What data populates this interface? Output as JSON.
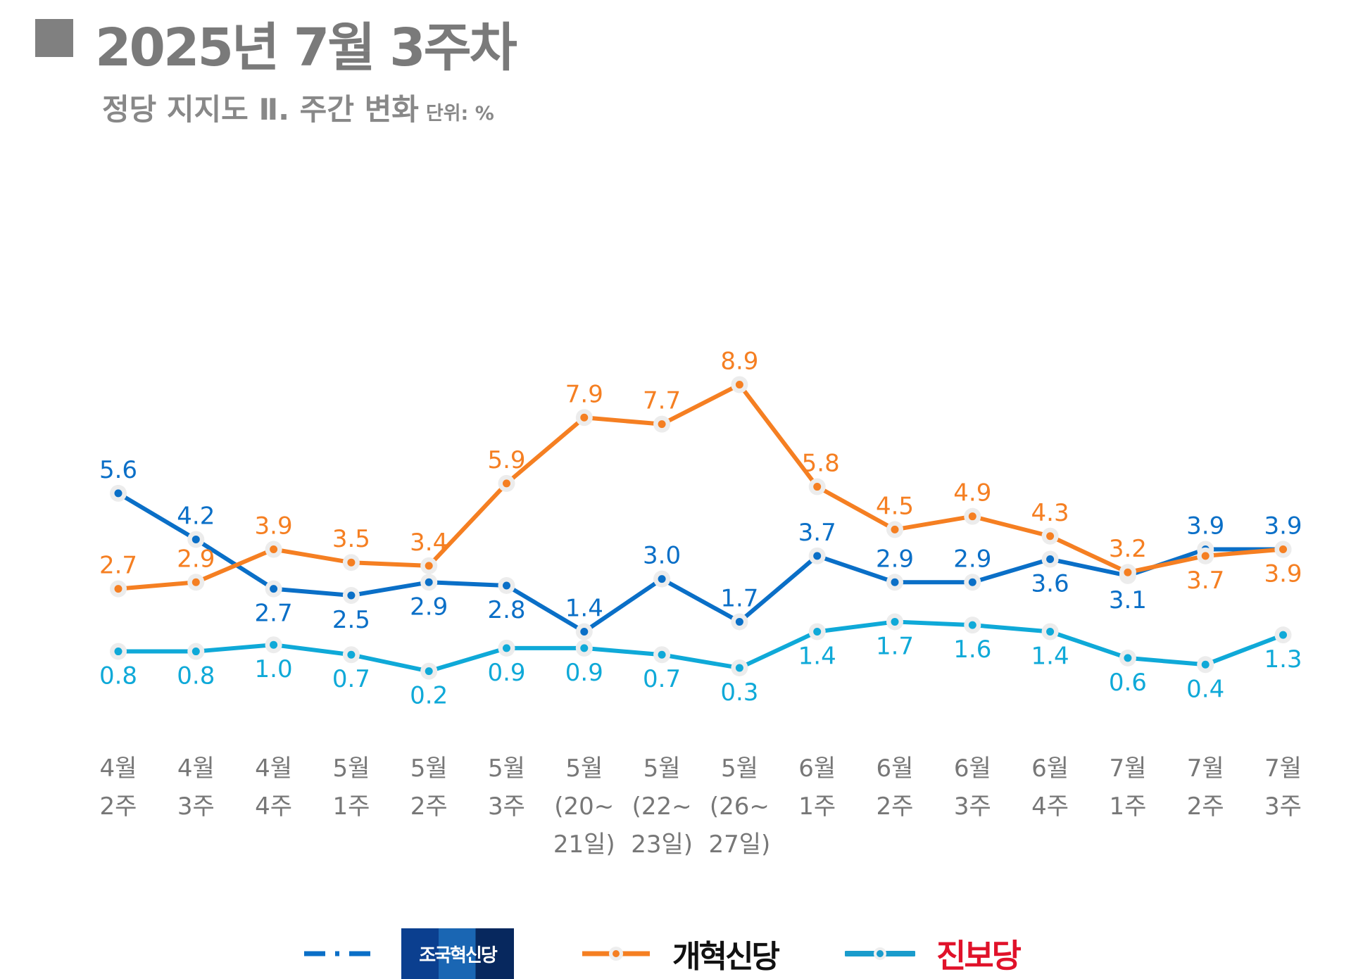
{
  "title": "2025년 7월 3주차",
  "subtitle": "정당 지지도 Ⅱ. 주간 변화",
  "unit": "단위: %",
  "chart_data": {
    "type": "line",
    "categories": [
      [
        "4월",
        "2주"
      ],
      [
        "4월",
        "3주"
      ],
      [
        "4월",
        "4주"
      ],
      [
        "5월",
        "1주"
      ],
      [
        "5월",
        "2주"
      ],
      [
        "5월",
        "3주"
      ],
      [
        "5월",
        "(20~",
        "21일)"
      ],
      [
        "5월",
        "(22~",
        "23일)"
      ],
      [
        "5월",
        "(26~",
        "27일)"
      ],
      [
        "6월",
        "1주"
      ],
      [
        "6월",
        "2주"
      ],
      [
        "6월",
        "3주"
      ],
      [
        "6월",
        "4주"
      ],
      [
        "7월",
        "1주"
      ],
      [
        "7월",
        "2주"
      ],
      [
        "7월",
        "3주"
      ]
    ],
    "series": [
      {
        "name": "조국혁신당",
        "color": "#0a6fc7",
        "values": [
          5.6,
          4.2,
          2.7,
          2.5,
          2.9,
          2.8,
          1.4,
          3.0,
          1.7,
          3.7,
          2.9,
          2.9,
          3.6,
          3.1,
          3.9,
          3.9
        ]
      },
      {
        "name": "개혁신당",
        "color": "#f57f22",
        "values": [
          2.7,
          2.9,
          3.9,
          3.5,
          3.4,
          5.9,
          7.9,
          7.7,
          8.9,
          5.8,
          4.5,
          4.9,
          4.3,
          3.2,
          3.7,
          3.9
        ]
      },
      {
        "name": "진보당",
        "color": "#0fa9d8",
        "values": [
          0.8,
          0.8,
          1.0,
          0.7,
          0.2,
          0.9,
          0.9,
          0.7,
          0.3,
          1.4,
          1.7,
          1.6,
          1.4,
          0.6,
          0.4,
          1.3
        ]
      }
    ],
    "grid": false,
    "legend_position": "bottom"
  }
}
